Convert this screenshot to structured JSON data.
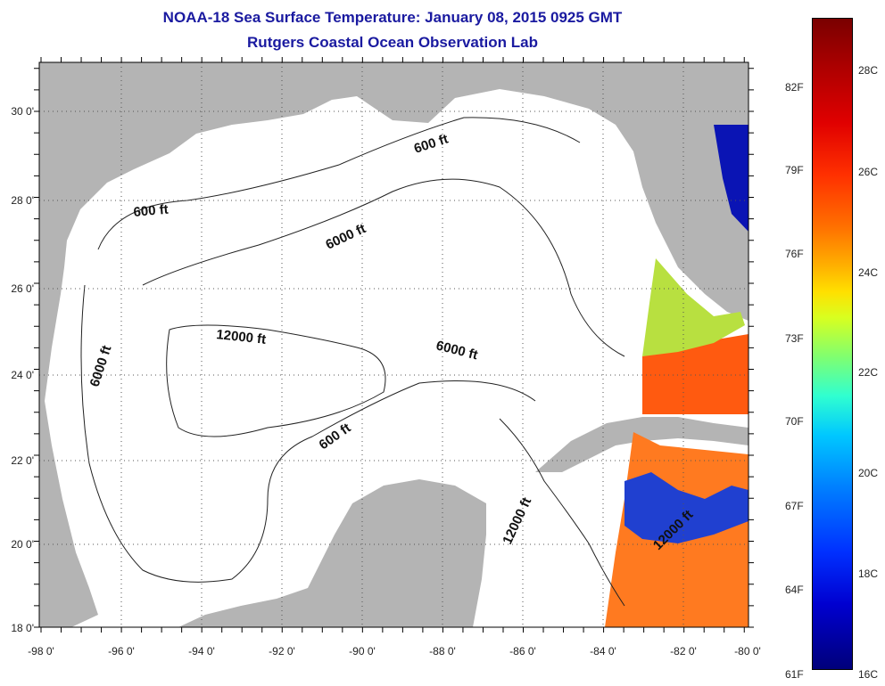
{
  "title": {
    "line1": "NOAA-18 Sea Surface Temperature:  January 08, 2015 0925 GMT",
    "line2": "Rutgers Coastal Ocean Observation Lab"
  },
  "colors": {
    "land": "#b4b4b4",
    "ocean_nodata": "#ffffff",
    "warm": "#ff5a10",
    "cold": "#0a14b4"
  },
  "map": {
    "lon_ticks": [
      "-98 0'",
      "-96 0'",
      "-94 0'",
      "-92 0'",
      "-90 0'",
      "-88 0'",
      "-86 0'",
      "-84 0'",
      "-82 0'",
      "-80 0'"
    ],
    "lat_ticks": [
      "18 0'",
      "20 0'",
      "22 0'",
      "24 0'",
      "26 0'",
      "28 0'",
      "30 0'"
    ],
    "lon_range": [
      -98,
      -80
    ],
    "lat_range": [
      18,
      31
    ]
  },
  "contour_labels": [
    "600 ft",
    "6000 ft",
    "600 ft",
    "12000 ft",
    "6000 ft",
    "6000 ft",
    "600 ft",
    "12000 ft",
    "12000 ft"
  ],
  "colorbar": {
    "fahrenheit": [
      "82F",
      "79F",
      "76F",
      "73F",
      "70F",
      "67F",
      "64F",
      "61F"
    ],
    "celsius": [
      "28C",
      "26C",
      "24C",
      "22C",
      "20C",
      "18C",
      "16C"
    ]
  }
}
